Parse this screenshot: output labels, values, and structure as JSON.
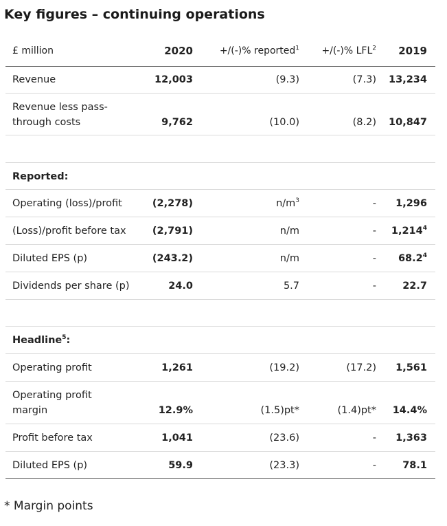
{
  "title": "Key figures – continuing operations",
  "header": {
    "label": "£ million",
    "c2020": "2020",
    "reported": "+/(-)% reported",
    "reported_sup": "1",
    "lfl": "+/(-)% LFL",
    "lfl_sup": "2",
    "c2019": "2019"
  },
  "rows_top": {
    "revenue": {
      "label": "Revenue",
      "v2020": "12,003",
      "reported": "(9.3)",
      "lfl": "(7.3)",
      "v2019": "13,234"
    },
    "rlpt": {
      "label1": "Revenue less pass-",
      "label2": "through costs",
      "v2020": "9,762",
      "reported": "(10.0)",
      "lfl": "(8.2)",
      "v2019": "10,847"
    }
  },
  "reported_section": {
    "heading": "Reported:",
    "op": {
      "label": "Operating (loss)/profit",
      "v2020": "(2,278)",
      "reported": "n/m",
      "reported_sup": "3",
      "lfl": "-",
      "v2019": "1,296"
    },
    "pbt": {
      "label": "(Loss)/profit before tax",
      "v2020": "(2,791)",
      "reported": "n/m",
      "lfl": "-",
      "v2019": "1,214",
      "v2019_sup": "4"
    },
    "eps": {
      "label": "Diluted EPS (p)",
      "v2020": "(243.2)",
      "reported": "n/m",
      "lfl": "-",
      "v2019": "68.2",
      "v2019_sup": "4"
    },
    "dps": {
      "label": "Dividends per share (p)",
      "v2020": "24.0",
      "reported": "5.7",
      "lfl": "-",
      "v2019": "22.7"
    }
  },
  "headline_section": {
    "heading": "Headline",
    "heading_sup": "5",
    "heading_suffix": ":",
    "op": {
      "label": "Operating profit",
      "v2020": "1,261",
      "reported": "(19.2)",
      "lfl": "(17.2)",
      "v2019": "1,561"
    },
    "margin": {
      "label1": "Operating profit",
      "label2": "margin",
      "v2020": "12.9%",
      "reported": "(1.5)pt*",
      "lfl": "(1.4)pt*",
      "v2019": "14.4%"
    },
    "pbt": {
      "label": "Profit before tax",
      "v2020": "1,041",
      "reported": "(23.6)",
      "lfl": "-",
      "v2019": "1,363"
    },
    "eps": {
      "label": "Diluted EPS (p)",
      "v2020": "59.9",
      "reported": "(23.3)",
      "lfl": "-",
      "v2019": "78.1"
    }
  },
  "footnote": "* Margin points"
}
